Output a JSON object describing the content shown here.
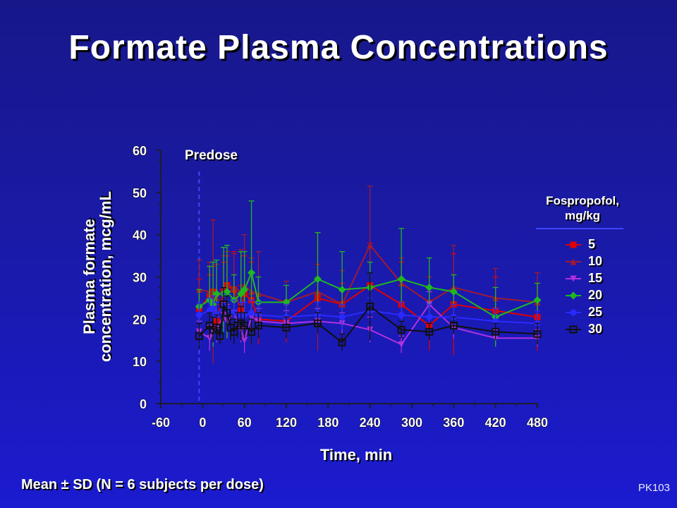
{
  "slide": {
    "title": "Formate Plasma Concentrations",
    "ylabel_line1": "Plasma formate",
    "ylabel_line2": "concentration, mcg/mL",
    "xlabel": "Time, min",
    "footnote": "Mean ± SD (N = 6 subjects per dose)",
    "slide_code": "PK103",
    "annotation": "Predose",
    "legend_title_line1": "Fospropofol,",
    "legend_title_line2": "mg/kg"
  },
  "chart_data": {
    "type": "line",
    "title": "Formate Plasma Concentrations",
    "xlabel": "Time, min",
    "ylabel": "Plasma formate concentration, mcg/mL",
    "xlim": [
      -60,
      480
    ],
    "ylim": [
      0,
      60
    ],
    "x_ticks": [
      -60,
      0,
      60,
      120,
      180,
      240,
      300,
      360,
      420,
      480
    ],
    "y_ticks": [
      0,
      10,
      20,
      30,
      40,
      50,
      60
    ],
    "predose_x": -5,
    "grid": false,
    "legend_position": "right",
    "colors": {
      "background": "#1a1aa6",
      "axis": "#1c1c2e",
      "predose_line": "#3f46ff"
    },
    "series": [
      {
        "name": "5",
        "color": "#e00000",
        "marker": "square",
        "x": [
          -5,
          10,
          15,
          20,
          30,
          35,
          45,
          55,
          60,
          70,
          80,
          120,
          165,
          200,
          240,
          285,
          325,
          360,
          420,
          480
        ],
        "y": [
          22.5,
          25.5,
          26.5,
          19.5,
          26.5,
          28.0,
          27.0,
          22.0,
          26.0,
          24.5,
          20.0,
          19.5,
          25.0,
          23.5,
          28.0,
          23.5,
          18.5,
          23.5,
          22.0,
          20.5
        ],
        "sd": [
          7.0,
          5.0,
          6.0,
          4.0,
          7.0,
          7.0,
          9.0,
          6.0,
          9.0,
          9.0,
          6.0,
          5.0,
          8.0,
          5.0,
          10.0,
          10.0,
          6.0,
          12.0,
          8.0,
          8.0
        ]
      },
      {
        "name": "10",
        "color": "#a01a30",
        "marker": "triangle-up",
        "x": [
          -5,
          10,
          15,
          20,
          30,
          35,
          45,
          55,
          60,
          70,
          80,
          120,
          165,
          200,
          240,
          285,
          325,
          360,
          420,
          480
        ],
        "y": [
          27.0,
          26.5,
          26.5,
          25.0,
          27.0,
          28.0,
          27.5,
          26.5,
          28.0,
          26.5,
          26.0,
          24.0,
          26.5,
          23.5,
          37.5,
          28.5,
          24.0,
          27.5,
          25.0,
          24.0
        ],
        "sd": [
          7.0,
          7.0,
          17.0,
          8.0,
          8.0,
          8.0,
          8.0,
          10.0,
          12.0,
          8.0,
          10.0,
          5.0,
          14.0,
          8.0,
          14.0,
          6.0,
          6.0,
          10.0,
          7.0,
          7.0
        ]
      },
      {
        "name": "15",
        "color": "#b030e0",
        "marker": "triangle-down",
        "x": [
          -5,
          10,
          15,
          20,
          30,
          35,
          45,
          55,
          60,
          70,
          80,
          120,
          165,
          200,
          240,
          285,
          325,
          360,
          420,
          480
        ],
        "y": [
          17.0,
          15.5,
          18.0,
          17.5,
          21.0,
          19.5,
          21.5,
          17.5,
          15.0,
          20.5,
          19.5,
          19.0,
          19.5,
          19.0,
          17.5,
          14.0,
          23.5,
          18.0,
          15.5,
          15.5
        ],
        "sd": [
          2.5,
          3.0,
          4.0,
          3.0,
          3.0,
          4.0,
          3.0,
          3.0,
          3.0,
          4.0,
          3.0,
          3.0,
          3.0,
          2.5,
          3.0,
          2.0,
          3.0,
          2.5,
          2.0,
          2.0
        ]
      },
      {
        "name": "20",
        "color": "#1fb81f",
        "marker": "diamond",
        "x": [
          -5,
          10,
          15,
          20,
          30,
          35,
          45,
          55,
          60,
          70,
          80,
          120,
          165,
          200,
          240,
          285,
          325,
          360,
          420,
          480
        ],
        "y": [
          23.0,
          24.5,
          23.5,
          26.0,
          26.0,
          26.5,
          24.5,
          26.0,
          27.0,
          31.0,
          24.0,
          24.0,
          29.5,
          27.0,
          27.5,
          29.5,
          27.5,
          26.5,
          20.5,
          24.5
        ],
        "sd": [
          4.0,
          8.0,
          10.0,
          8.0,
          11.0,
          11.0,
          6.0,
          10.0,
          9.0,
          17.0,
          6.0,
          4.0,
          11.0,
          9.0,
          6.0,
          12.0,
          7.0,
          4.0,
          7.0,
          4.0
        ]
      },
      {
        "name": "25",
        "color": "#2a2aff",
        "marker": "circle",
        "x": [
          -5,
          10,
          15,
          20,
          30,
          35,
          45,
          55,
          60,
          70,
          80,
          120,
          165,
          200,
          240,
          285,
          325,
          360,
          420,
          480
        ],
        "y": [
          21.0,
          22.0,
          22.5,
          21.0,
          23.0,
          22.5,
          21.5,
          21.0,
          21.0,
          21.5,
          21.0,
          20.5,
          21.0,
          20.5,
          22.0,
          21.0,
          20.5,
          20.5,
          19.5,
          19.0
        ],
        "sd": [
          3.0,
          3.0,
          3.0,
          3.0,
          3.0,
          3.0,
          3.0,
          3.0,
          3.0,
          3.0,
          3.0,
          3.0,
          3.0,
          3.0,
          3.0,
          3.0,
          3.0,
          3.0,
          3.0,
          3.0
        ]
      },
      {
        "name": "30",
        "color": "#101010",
        "marker": "open-square",
        "x": [
          -5,
          10,
          15,
          20,
          25,
          30,
          35,
          40,
          45,
          50,
          55,
          60,
          70,
          80,
          120,
          165,
          200,
          240,
          285,
          325,
          360,
          420,
          480
        ],
        "y": [
          16.0,
          18.5,
          17.5,
          18.0,
          16.0,
          23.5,
          21.5,
          18.0,
          17.0,
          18.5,
          19.0,
          18.5,
          17.0,
          18.5,
          18.0,
          19.0,
          14.5,
          23.0,
          17.5,
          17.0,
          18.5,
          17.0,
          16.5
        ],
        "sd": [
          3.0,
          3.0,
          3.0,
          3.0,
          2.0,
          4.0,
          4.0,
          3.0,
          3.0,
          3.0,
          4.0,
          3.0,
          3.0,
          3.0,
          2.5,
          2.5,
          2.0,
          8.0,
          2.0,
          2.0,
          2.0,
          2.0,
          2.5
        ]
      }
    ]
  }
}
